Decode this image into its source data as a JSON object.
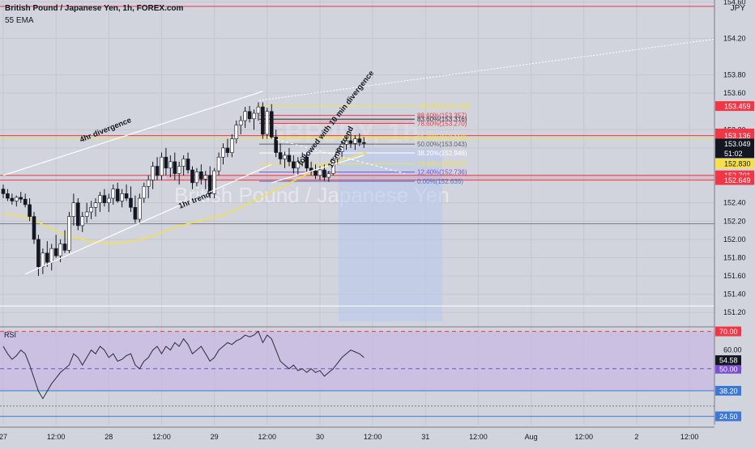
{
  "header": {
    "title": "British Pound / Japanese Yen, 1h, FOREX.com",
    "ema": "55 EMA",
    "currency": "JPY",
    "rsi_label": "RSI",
    "watermark": "British Pound / Japanese Yen",
    "watermark_ticker": "GBPJPY, 1h"
  },
  "colors": {
    "background": "#d1d4dc",
    "grid": "#c4c7cf",
    "candle_fill": "#ffffff",
    "candle_border": "#131722",
    "ema": "#f5e04a",
    "red_line": "#f23645",
    "rsi_band": "#c9b6e4",
    "rsi_line": "#2a2e39"
  },
  "chart_data": {
    "type": "candlestick",
    "ylim": [
      151.06,
      154.62
    ],
    "y_ticks": [
      "154.60",
      "154.20",
      "153.80",
      "153.60",
      "153.20",
      "153.00",
      "152.40",
      "152.20",
      "152.00",
      "151.80",
      "151.60",
      "151.40",
      "151.20"
    ],
    "x_ticks": [
      "27",
      "12:00",
      "28",
      "12:00",
      "29",
      "12:00",
      "30",
      "12:00",
      "31",
      "12:00",
      "Aug",
      "12:00",
      "2",
      "12:00"
    ],
    "ohlc": [
      [
        152.55,
        152.6,
        152.45,
        152.5
      ],
      [
        152.5,
        152.55,
        152.42,
        152.45
      ],
      [
        152.45,
        152.5,
        152.38,
        152.42
      ],
      [
        152.42,
        152.48,
        152.36,
        152.46
      ],
      [
        152.46,
        152.52,
        152.4,
        152.44
      ],
      [
        152.44,
        152.5,
        152.35,
        152.38
      ],
      [
        152.38,
        152.45,
        152.2,
        152.25
      ],
      [
        152.25,
        152.3,
        151.95,
        152.0
      ],
      [
        152.0,
        152.05,
        151.6,
        151.7
      ],
      [
        151.7,
        151.9,
        151.62,
        151.85
      ],
      [
        151.85,
        151.98,
        151.7,
        151.75
      ],
      [
        151.75,
        151.95,
        151.66,
        151.9
      ],
      [
        151.9,
        152.05,
        151.8,
        151.82
      ],
      [
        151.82,
        152.0,
        151.75,
        151.95
      ],
      [
        151.95,
        152.1,
        151.85,
        151.88
      ],
      [
        151.88,
        152.3,
        151.85,
        152.25
      ],
      [
        152.25,
        152.5,
        152.15,
        152.4
      ],
      [
        152.4,
        152.45,
        152.1,
        152.15
      ],
      [
        152.15,
        152.3,
        152.08,
        152.25
      ],
      [
        152.25,
        152.4,
        152.18,
        152.3
      ],
      [
        152.3,
        152.42,
        152.22,
        152.35
      ],
      [
        152.35,
        152.45,
        152.25,
        152.4
      ],
      [
        152.4,
        152.52,
        152.3,
        152.48
      ],
      [
        152.48,
        152.55,
        152.36,
        152.4
      ],
      [
        152.4,
        152.5,
        152.3,
        152.45
      ],
      [
        152.45,
        152.6,
        152.38,
        152.55
      ],
      [
        152.55,
        152.62,
        152.4,
        152.42
      ],
      [
        152.42,
        152.55,
        152.35,
        152.5
      ],
      [
        152.5,
        152.6,
        152.42,
        152.45
      ],
      [
        152.45,
        152.58,
        152.3,
        152.35
      ],
      [
        152.35,
        152.48,
        152.18,
        152.22
      ],
      [
        152.22,
        152.5,
        152.18,
        152.45
      ],
      [
        152.45,
        152.62,
        152.4,
        152.58
      ],
      [
        152.58,
        152.7,
        152.45,
        152.65
      ],
      [
        152.65,
        152.85,
        152.55,
        152.8
      ],
      [
        152.8,
        152.9,
        152.65,
        152.7
      ],
      [
        152.7,
        152.95,
        152.65,
        152.9
      ],
      [
        152.9,
        153.0,
        152.7,
        152.78
      ],
      [
        152.78,
        152.92,
        152.68,
        152.85
      ],
      [
        152.85,
        152.95,
        152.65,
        152.72
      ],
      [
        152.72,
        152.85,
        152.6,
        152.8
      ],
      [
        152.8,
        152.92,
        152.7,
        152.88
      ],
      [
        152.88,
        152.95,
        152.72,
        152.76
      ],
      [
        152.76,
        152.8,
        152.55,
        152.62
      ],
      [
        152.62,
        152.78,
        152.58,
        152.74
      ],
      [
        152.74,
        152.82,
        152.6,
        152.66
      ],
      [
        152.66,
        152.75,
        152.55,
        152.7
      ],
      [
        152.7,
        152.8,
        152.45,
        152.5
      ],
      [
        152.5,
        152.78,
        152.45,
        152.75
      ],
      [
        152.75,
        152.95,
        152.7,
        152.9
      ],
      [
        152.9,
        153.05,
        152.82,
        153.0
      ],
      [
        153.0,
        153.1,
        152.9,
        152.95
      ],
      [
        152.95,
        153.15,
        152.9,
        153.1
      ],
      [
        153.1,
        153.3,
        153.05,
        153.25
      ],
      [
        153.25,
        153.35,
        153.15,
        153.3
      ],
      [
        153.3,
        153.45,
        153.22,
        153.4
      ],
      [
        153.4,
        153.46,
        153.28,
        153.32
      ],
      [
        153.32,
        153.42,
        153.2,
        153.38
      ],
      [
        153.38,
        153.5,
        153.3,
        153.45
      ],
      [
        153.45,
        153.5,
        153.1,
        153.15
      ],
      [
        153.15,
        153.44,
        153.1,
        153.4
      ],
      [
        153.4,
        153.48,
        153.1,
        153.12
      ],
      [
        153.12,
        153.2,
        152.9,
        152.95
      ],
      [
        152.95,
        153.05,
        152.82,
        152.88
      ],
      [
        152.88,
        152.96,
        152.78,
        152.92
      ],
      [
        152.92,
        153.0,
        152.8,
        152.85
      ],
      [
        152.85,
        152.92,
        152.72,
        152.78
      ],
      [
        152.78,
        152.9,
        152.7,
        152.85
      ],
      [
        152.85,
        152.95,
        152.8,
        152.9
      ],
      [
        152.9,
        152.95,
        152.74,
        152.78
      ],
      [
        152.78,
        152.85,
        152.7,
        152.75
      ],
      [
        152.75,
        152.82,
        152.66,
        152.7
      ],
      [
        152.7,
        152.8,
        152.65,
        152.76
      ],
      [
        152.76,
        152.82,
        152.64,
        152.68
      ],
      [
        152.68,
        152.75,
        152.63,
        152.72
      ],
      [
        152.72,
        152.9,
        152.7,
        152.88
      ],
      [
        152.88,
        153.0,
        152.82,
        152.96
      ],
      [
        152.96,
        153.08,
        152.9,
        153.04
      ],
      [
        153.04,
        153.12,
        152.98,
        153.08
      ],
      [
        153.08,
        153.16,
        153.0,
        153.05
      ],
      [
        153.05,
        153.14,
        152.98,
        153.1
      ],
      [
        153.1,
        153.16,
        153.02,
        153.06
      ],
      [
        153.06,
        153.12,
        153.0,
        153.05
      ]
    ],
    "ema": [
      152.28,
      152.26,
      152.22,
      152.14,
      152.06,
      152.02,
      151.98,
      151.96,
      151.96,
      151.98,
      152.02,
      152.08,
      152.14,
      152.18,
      152.22,
      152.26,
      152.32,
      152.4,
      152.48,
      152.56,
      152.64,
      152.72,
      152.8,
      152.86,
      152.9,
      152.95
    ],
    "fib_levels": [
      {
        "label": "100.00%(153.460)",
        "value": 153.46,
        "color": "#f5e04a"
      },
      {
        "label": "88.60%(153.357)",
        "value": 153.357,
        "color": "#f23645"
      },
      {
        "label": "83.60%(153.316)",
        "value": 153.316,
        "color": "#2a2e39"
      },
      {
        "label": "78.60%(153.270)",
        "value": 153.27,
        "color": "#f23645"
      },
      {
        "label": "61.80%(153.118)",
        "value": 153.118,
        "color": "#f5e04a"
      },
      {
        "label": "50.00%(153.043)",
        "value": 153.043,
        "color": "#5d606b"
      },
      {
        "label": "38.20%(152.946)",
        "value": 152.946,
        "color": "#ffffff"
      },
      {
        "label": "23.60%(152.827)",
        "value": 152.827,
        "color": "#f5e04a"
      },
      {
        "label": "12.40%(152.736)",
        "value": 152.736,
        "color": "#7b4fd0"
      },
      {
        "label": "0.00%(152.635)",
        "value": 152.635,
        "color": "#3c78d8"
      }
    ],
    "horizontal_lines": [
      {
        "value": 154.55,
        "color": "#f23645"
      },
      {
        "value": 153.136,
        "color": "#f23645"
      },
      {
        "value": 152.701,
        "color": "#f23645"
      },
      {
        "value": 152.649,
        "color": "#f23645"
      },
      {
        "value": 152.17,
        "color": "#787b86"
      },
      {
        "value": 151.27,
        "color": "#ffffff"
      }
    ],
    "trend_lines": [
      {
        "points": [
          [
            "27 00:00",
            152.7
          ],
          [
            "29 11:00",
            153.62
          ]
        ],
        "color": "#ffffff"
      },
      {
        "points": [
          [
            "27 05:00",
            151.62
          ],
          [
            "29 13:00",
            152.82
          ]
        ],
        "color": "#ffffff"
      },
      {
        "points": [
          [
            "29 13:00",
            152.62
          ],
          [
            "30 10:00",
            152.92
          ]
        ],
        "color": "#ffffff"
      }
    ],
    "annotations": [
      "4hr divergence",
      "1hr trend",
      "followed with 10 min divergence",
      "10 min trend"
    ],
    "price_labels": [
      {
        "text": "153.459",
        "value": 153.459,
        "bg": "#f23645",
        "fg": "#ffffff"
      },
      {
        "text": "153.159",
        "value": 153.159,
        "bg": "#f23645",
        "fg": "#ffffff"
      },
      {
        "text": "153.159",
        "value": 153.159,
        "bg": "#131722",
        "fg": "#ffffff"
      },
      {
        "text": "153.136",
        "value": 153.136,
        "bg": "#f23645",
        "fg": "#ffffff"
      },
      {
        "text": "153.049",
        "value": 153.049,
        "bg": "#131722",
        "fg": "#ffffff"
      },
      {
        "text": "51:02",
        "value": 152.96,
        "bg": "#131722",
        "fg": "#ffffff"
      },
      {
        "text": "152.830",
        "value": 152.83,
        "bg": "#f5e04a",
        "fg": "#131722"
      },
      {
        "text": "152.701",
        "value": 152.701,
        "bg": "#f23645",
        "fg": "#ffffff"
      },
      {
        "text": "152.649",
        "value": 152.649,
        "bg": "#f23645",
        "fg": "#ffffff"
      }
    ],
    "rsi": {
      "ylim": [
        20,
        72
      ],
      "y_ticks": [
        "70.00",
        "60.00",
        "50.00"
      ],
      "values": [
        62,
        58,
        55,
        57,
        60,
        58,
        52,
        45,
        38,
        34,
        38,
        42,
        45,
        48,
        50,
        52,
        58,
        56,
        52,
        56,
        60,
        58,
        62,
        60,
        56,
        58,
        54,
        55,
        57,
        58,
        52,
        50,
        54,
        56,
        60,
        62,
        58,
        62,
        60,
        64,
        62,
        66,
        63,
        58,
        60,
        62,
        58,
        54,
        56,
        60,
        62,
        64,
        63,
        65,
        66,
        68,
        67,
        68,
        70,
        64,
        68,
        66,
        60,
        54,
        52,
        50,
        52,
        49,
        50,
        48,
        50,
        48,
        49,
        46,
        48,
        50,
        53,
        56,
        58,
        60,
        59,
        58,
        56
      ],
      "levels": [
        {
          "value": 70,
          "label": "70.00",
          "color": "#f23645",
          "style": "dashed"
        },
        {
          "value": 50,
          "label": "50.00",
          "color": "#7b4fd0",
          "style": "dashed"
        },
        {
          "value": 38.2,
          "label": "38.20",
          "color": "#3c78d8",
          "style": "solid"
        },
        {
          "value": 24.5,
          "label": "24.50",
          "color": "#3c78d8",
          "style": "solid"
        }
      ],
      "current": {
        "text": "54.58",
        "value": 54.58
      }
    }
  }
}
